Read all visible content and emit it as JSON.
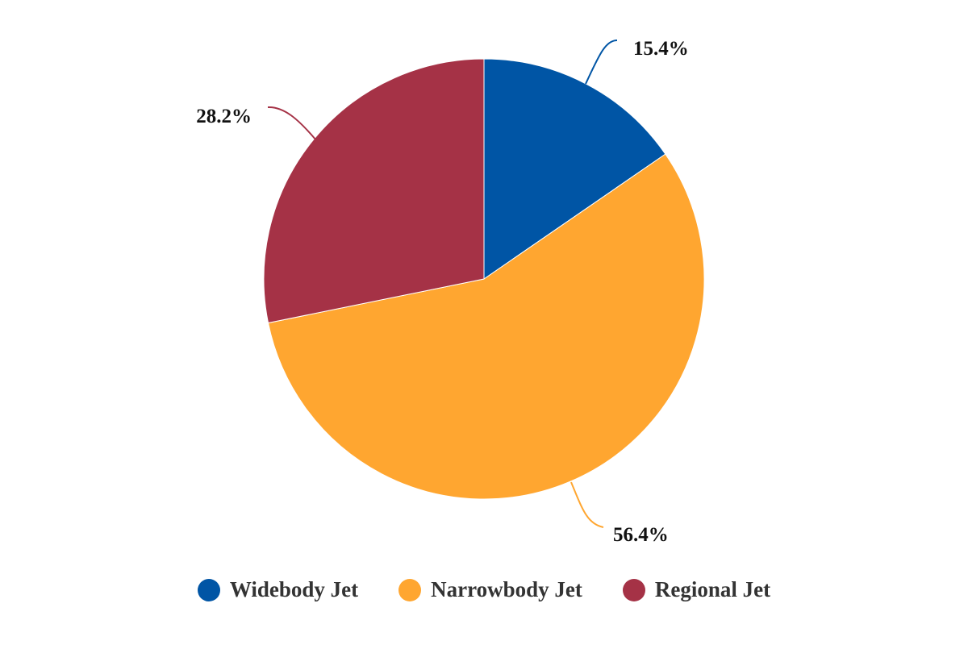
{
  "chart_data": {
    "type": "pie",
    "series": [
      {
        "name": "Widebody Jet",
        "value": 15.4,
        "label": "15.4%",
        "color": "#0055a5"
      },
      {
        "name": "Narrowbody Jet",
        "value": 56.4,
        "label": "56.4%",
        "color": "#ffa630"
      },
      {
        "name": "Regional Jet",
        "value": 28.2,
        "label": "28.2%",
        "color": "#a53246"
      }
    ],
    "start_angle": "12 o'clock",
    "direction": "clockwise",
    "legend_position": "bottom"
  }
}
